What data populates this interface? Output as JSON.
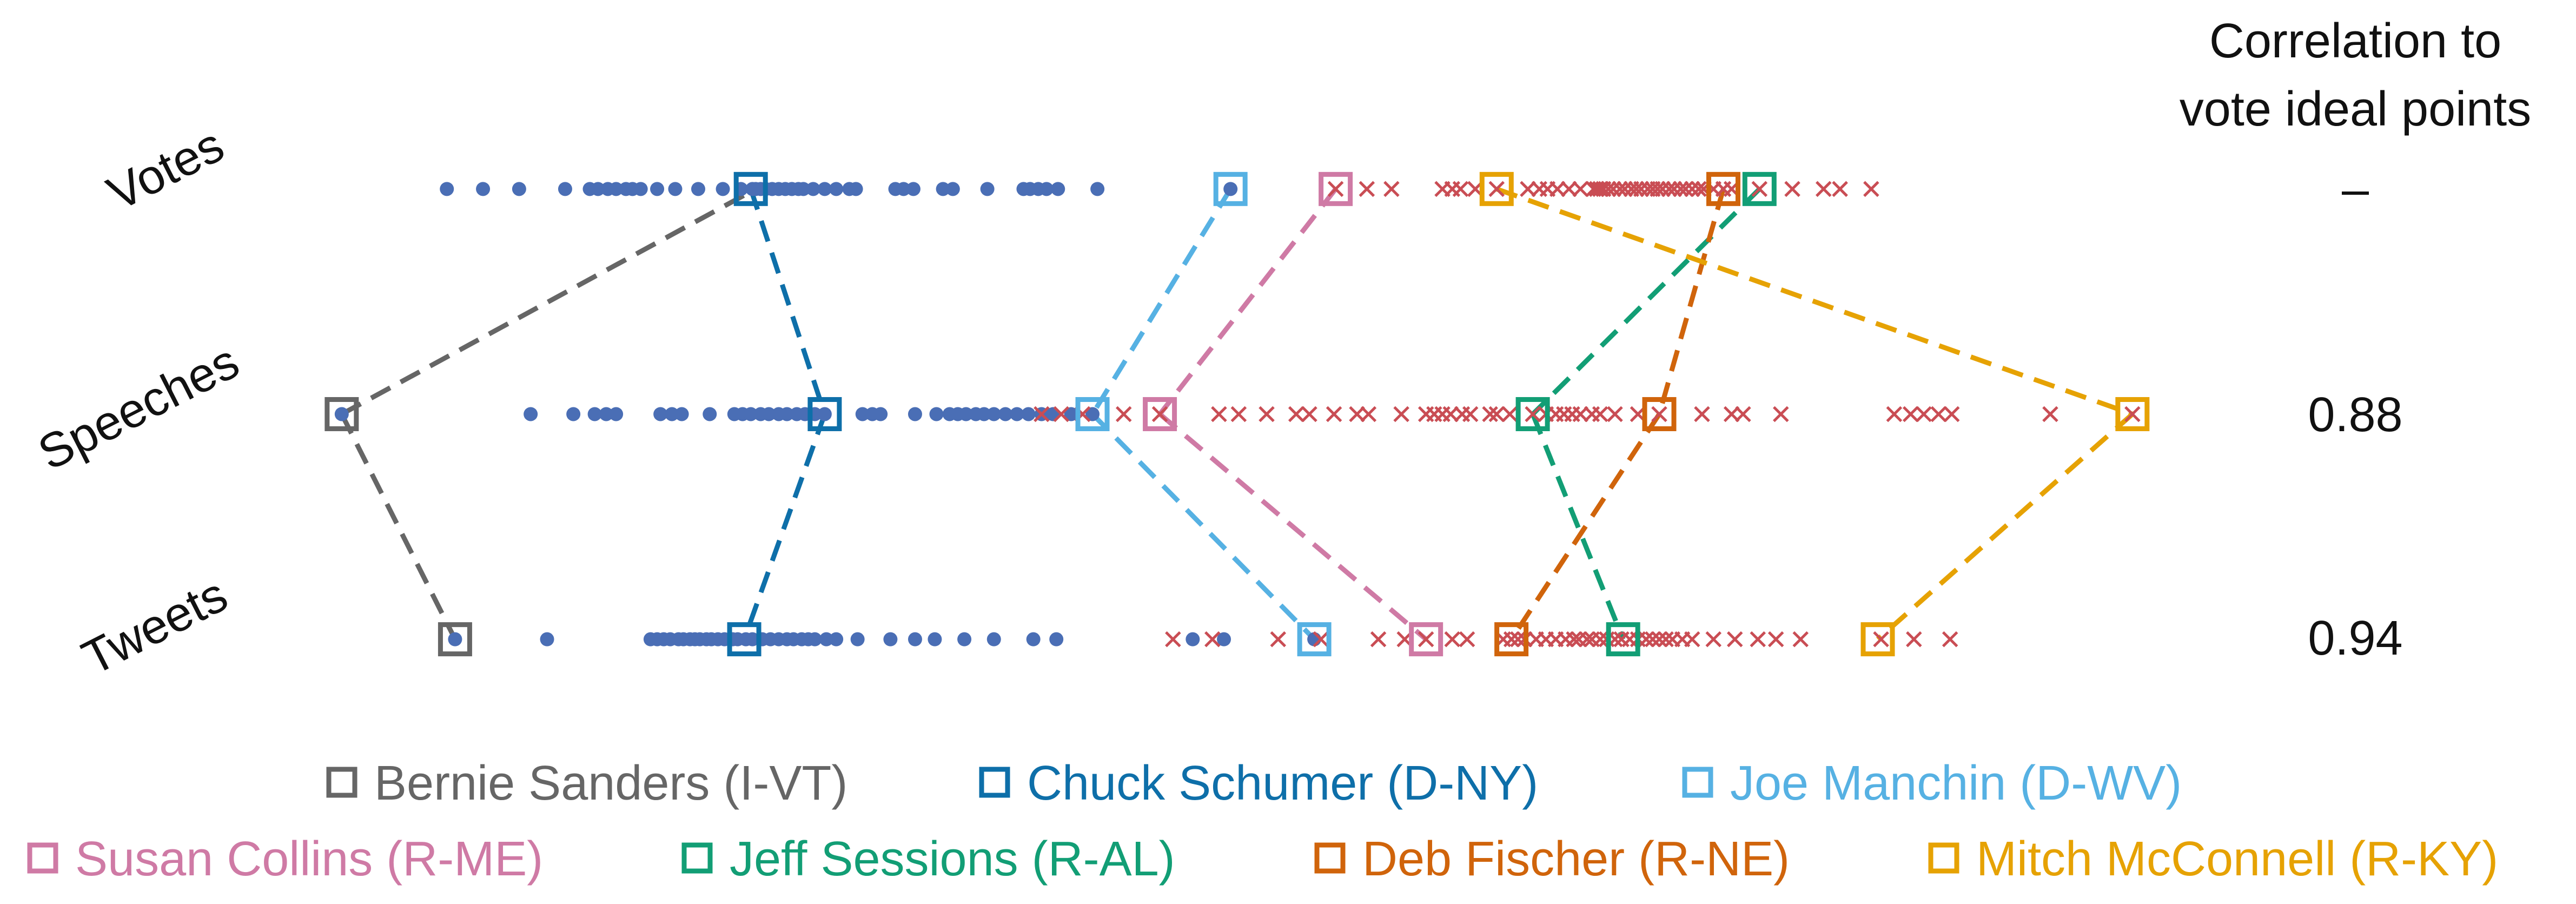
{
  "chart_data": {
    "type": "scatter",
    "rows": [
      "Votes",
      "Speeches",
      "Tweets"
    ],
    "correlation_header": [
      "Correlation to",
      "vote ideal points"
    ],
    "correlations": [
      "–",
      "0.88",
      "0.94"
    ],
    "colors": {
      "dem": "#4a6eb5",
      "rep": "#c94d54"
    },
    "scatter": {
      "Votes": {
        "dem": [
          272,
          294,
          316,
          344,
          359,
          364,
          370,
          375,
          381,
          385,
          390,
          400,
          411,
          425,
          440,
          451,
          458,
          460,
          463,
          466,
          470,
          474,
          478,
          482,
          486,
          489,
          495,
          502,
          509,
          517,
          521,
          545,
          550,
          556,
          574,
          580,
          601,
          623,
          627,
          632,
          637,
          644,
          668,
          749
        ],
        "rep": [
          813,
          832,
          847,
          878,
          884,
          889,
          898,
          911,
          930,
          937,
          942,
          948,
          955,
          962,
          970,
          972,
          974,
          976,
          979,
          982,
          986,
          989,
          993,
          996,
          999,
          1003,
          1006,
          1009,
          1012,
          1016,
          1019,
          1023,
          1026,
          1030,
          1034,
          1037,
          1043,
          1049,
          1054,
          1071,
          1091,
          1110,
          1120,
          1139
        ]
      },
      "Speeches": {
        "dem": [
          208,
          323,
          349,
          362,
          369,
          375,
          402,
          409,
          415,
          432,
          447,
          452,
          457,
          463,
          468,
          474,
          479,
          485,
          490,
          496,
          502,
          525,
          531,
          536,
          557,
          570,
          578,
          583,
          588,
          594,
          599,
          605,
          612,
          619,
          626,
          634,
          641,
          652,
          665
        ],
        "rep": [
          634,
          646,
          659,
          684,
          706,
          742,
          754,
          771,
          789,
          797,
          812,
          826,
          833,
          853,
          868,
          873,
          878,
          883,
          890,
          895,
          907,
          911,
          919,
          933,
          941,
          947,
          952,
          957,
          962,
          969,
          974,
          983,
          997,
          1010,
          1036,
          1054,
          1061,
          1084,
          1153,
          1163,
          1171,
          1180,
          1188,
          1248,
          1298
        ]
      },
      "Tweets": {
        "dem": [
          277,
          333,
          396,
          400,
          404,
          408,
          413,
          416,
          420,
          423,
          426,
          430,
          433,
          437,
          441,
          446,
          449,
          454,
          458,
          464,
          469,
          474,
          479,
          483,
          488,
          492,
          496,
          503,
          509,
          522,
          542,
          557,
          569,
          587,
          605,
          629,
          643,
          726,
          745,
          800
        ],
        "rep": [
          714,
          738,
          778,
          804,
          839,
          855,
          868,
          884,
          893,
          915,
          920,
          924,
          928,
          935,
          941,
          947,
          953,
          958,
          961,
          966,
          969,
          974,
          978,
          983,
          987,
          992,
          997,
          1002,
          1006,
          1010,
          1014,
          1018,
          1024,
          1030,
          1043,
          1056,
          1070,
          1081,
          1096,
          1145,
          1165,
          1187
        ]
      }
    },
    "senators": [
      {
        "name": "Bernie Sanders (I-VT)",
        "color": "#666666",
        "Votes": null,
        "Speeches": 208,
        "Tweets": 277
      },
      {
        "name": "Chuck Schumer (D-NY)",
        "color": "#0e6fa9",
        "Votes": 457,
        "Speeches": 502,
        "Tweets": 453
      },
      {
        "name": "Joe Manchin (D-WV)",
        "color": "#56b1e3",
        "Votes": 749,
        "Speeches": 665,
        "Tweets": 800
      },
      {
        "name": "Susan Collins (R-ME)",
        "color": "#cf7aa5",
        "Votes": 813,
        "Speeches": 706,
        "Tweets": 868
      },
      {
        "name": "Jeff Sessions (R-AL)",
        "color": "#129e75",
        "Votes": 1071,
        "Speeches": 933,
        "Tweets": 988
      },
      {
        "name": "Deb Fischer (R-NE)",
        "color": "#d0640b",
        "Votes": 1049,
        "Speeches": 1010,
        "Tweets": 920
      },
      {
        "name": "Mitch McConnell (R-KY)",
        "color": "#e6a203",
        "Votes": 911,
        "Speeches": 1298,
        "Tweets": 1143
      }
    ],
    "sanders_extra_link": {
      "from": "Speeches",
      "value": 208,
      "to": "Votes",
      "to_value": 460
    },
    "legend_rows": [
      [
        "Bernie Sanders (I-VT)",
        "Chuck Schumer (D-NY)",
        "Joe Manchin (D-WV)"
      ],
      [
        "Susan Collins (R-ME)",
        "Jeff Sessions (R-AL)",
        "Deb Fischer (R-NE)",
        "Mitch McConnell (R-KY)"
      ]
    ]
  }
}
